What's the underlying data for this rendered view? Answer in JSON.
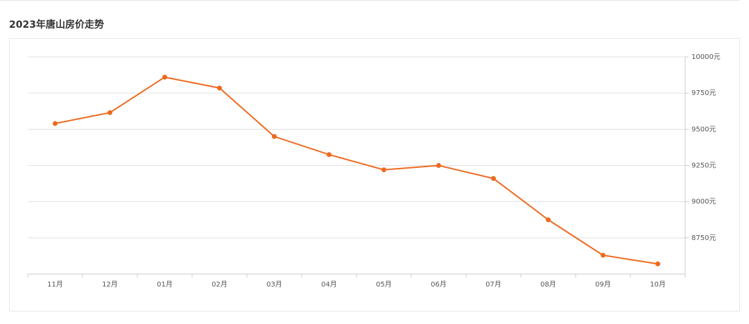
{
  "header": {
    "title": "2023年唐山房价走势"
  },
  "chart_data": {
    "type": "line",
    "categories": [
      "11月",
      "12月",
      "01月",
      "02月",
      "03月",
      "04月",
      "05月",
      "06月",
      "07月",
      "08月",
      "09月",
      "10月"
    ],
    "series": [
      {
        "color": "#ee6a1f",
        "values": [
          9540,
          9615,
          9860,
          9785,
          9450,
          9325,
          9220,
          9250,
          9160,
          8875,
          8630,
          8570
        ]
      }
    ],
    "ylim": [
      8500,
      10000
    ],
    "yticks": [
      {
        "value": 8750,
        "label": "8750元"
      },
      {
        "value": 9000,
        "label": "9000元"
      },
      {
        "value": 9250,
        "label": "9250元"
      },
      {
        "value": 9500,
        "label": "9500元"
      },
      {
        "value": 9750,
        "label": "9750元"
      },
      {
        "value": 10000,
        "label": "10000元"
      }
    ],
    "grid": true
  }
}
